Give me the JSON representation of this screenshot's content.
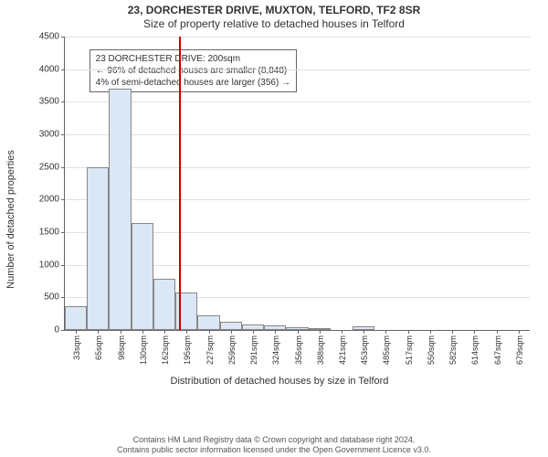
{
  "title_line1": "23, DORCHESTER DRIVE, MUXTON, TELFORD, TF2 8SR",
  "title_line2": "Size of property relative to detached houses in Telford",
  "ylabel": "Number of detached properties",
  "xlabel": "Distribution of detached houses by size in Telford",
  "ylim": [
    0,
    4500
  ],
  "ytick_step": 500,
  "yticks": [
    0,
    500,
    1000,
    1500,
    2000,
    2500,
    3000,
    3500,
    4000,
    4500
  ],
  "xticks": [
    "33sqm",
    "65sqm",
    "98sqm",
    "130sqm",
    "162sqm",
    "195sqm",
    "227sqm",
    "259sqm",
    "291sqm",
    "324sqm",
    "356sqm",
    "388sqm",
    "421sqm",
    "453sqm",
    "485sqm",
    "517sqm",
    "550sqm",
    "582sqm",
    "614sqm",
    "647sqm",
    "679sqm"
  ],
  "bars": {
    "count": 21,
    "values": [
      370,
      2500,
      3700,
      1640,
      780,
      570,
      230,
      120,
      90,
      70,
      40,
      30,
      0,
      50,
      0,
      0,
      0,
      0,
      0,
      0,
      0
    ],
    "fill_color": "#dbe7f5",
    "border_color": "#888888",
    "width_ratio": 1.0
  },
  "marker": {
    "bin_index_after": 5.15,
    "color": "#cc0000"
  },
  "annotation": {
    "line1": "23 DORCHESTER DRIVE: 200sqm",
    "line2": "← 96% of detached houses are smaller (8,848)",
    "line3": "4% of semi-detached houses are larger (356) →",
    "border_color": "#666666",
    "background_color": "#ffffff",
    "fontsize": 10
  },
  "grid_color": "#e0e0e0",
  "axis_color": "#666666",
  "background_color": "#ffffff",
  "footer": {
    "line1": "Contains HM Land Registry data © Crown copyright and database right 2024.",
    "line2": "Contains public sector information licensed under the Open Government Licence v3.0."
  }
}
